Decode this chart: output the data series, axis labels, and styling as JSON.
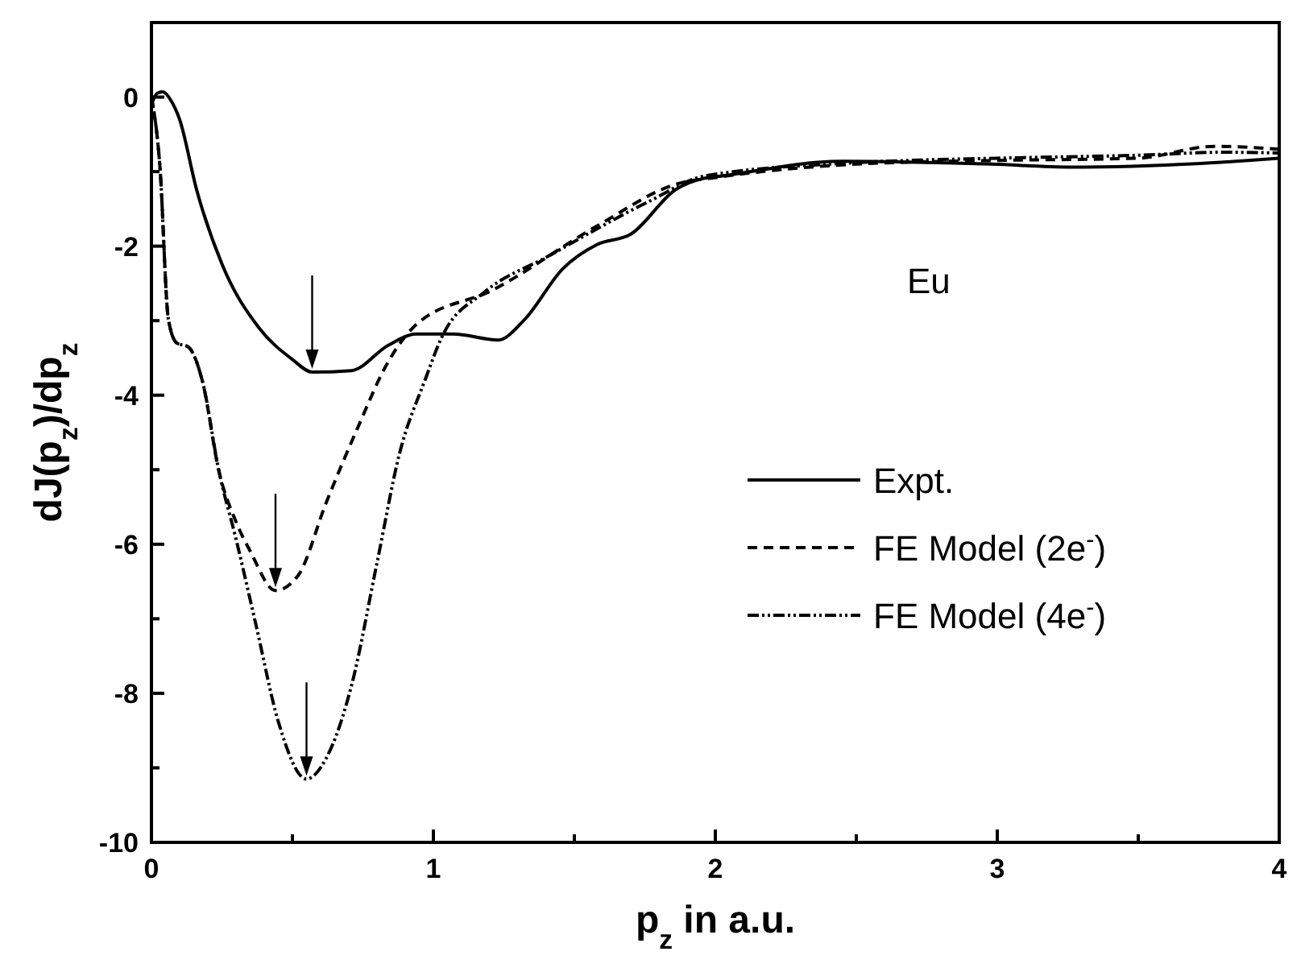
{
  "chart_data": {
    "type": "line",
    "xlabel": "p$_{z}$ in a.u.",
    "ylabel": "dJ(p$_{z}$)/dp$_{z}$",
    "xlim": [
      0,
      4
    ],
    "ylim": [
      -10,
      1
    ],
    "xticks": [
      0,
      {
        "value": 0.5,
        "label": null
      },
      1,
      {
        "value": 1.5,
        "label": null
      },
      2,
      {
        "value": 2.5,
        "label": null
      },
      3,
      {
        "value": 3.5,
        "label": null
      },
      4
    ],
    "yticks": [
      -10,
      {
        "value": -9,
        "label": null
      },
      -8,
      {
        "value": -7,
        "label": null
      },
      -6,
      {
        "value": -5,
        "label": null
      },
      -4,
      {
        "value": -3,
        "label": null
      },
      -2,
      {
        "value": -1,
        "label": null
      },
      0
    ],
    "grid": false,
    "legend": "right",
    "annotations": [
      "Eu"
    ],
    "series": [
      {
        "name": "Expt.",
        "color": "#000000",
        "line_style": "solid",
        "x": [
          0,
          0.02,
          0.04,
          0.07,
          0.1,
          0.16,
          0.25,
          0.38,
          0.5,
          0.57,
          0.71,
          0.84,
          0.94,
          1.07,
          1.23,
          1.32,
          1.46,
          1.58,
          1.7,
          1.86,
          1.96,
          2.02,
          2.45,
          2.98,
          3.26,
          3.72,
          4.0
        ],
        "values": [
          -0.1,
          0.05,
          0.07,
          -0.05,
          -0.3,
          -1.24,
          -2.24,
          -3.09,
          -3.52,
          -3.69,
          -3.67,
          -3.33,
          -3.18,
          -3.18,
          -3.26,
          -3.0,
          -2.3,
          -1.98,
          -1.84,
          -1.24,
          -1.09,
          -1.06,
          -0.86,
          -0.9,
          -0.94,
          -0.89,
          -0.82
        ]
      },
      {
        "name": "FE Model (2e$^{-}$)",
        "color": "#000000",
        "line_style": "dashed",
        "x": [
          0,
          0.03,
          0.06,
          0.09,
          0.13,
          0.18,
          0.24,
          0.3,
          0.35,
          0.44,
          0.52,
          0.62,
          0.73,
          0.84,
          0.94,
          1.21,
          1.58,
          1.86,
          2.02,
          2.5,
          3.0,
          3.5,
          3.77,
          4.0
        ],
        "values": [
          0,
          -0.93,
          -2.98,
          -3.3,
          -3.35,
          -3.8,
          -5.03,
          -5.7,
          -6.09,
          -6.62,
          -6.42,
          -5.44,
          -4.45,
          -3.55,
          -3.05,
          -2.59,
          -1.73,
          -1.17,
          -1.07,
          -0.9,
          -0.85,
          -0.82,
          -0.66,
          -0.7
        ]
      },
      {
        "name": "FE Model (4e$^{-}$)",
        "color": "#000000",
        "line_style": "dashdot",
        "x": [
          0,
          0.03,
          0.06,
          0.09,
          0.13,
          0.18,
          0.24,
          0.3,
          0.37,
          0.45,
          0.55,
          0.62,
          0.71,
          0.8,
          0.88,
          0.97,
          1.03,
          1.18,
          1.4,
          1.77,
          1.96,
          2.5,
          3.0,
          3.5,
          3.8,
          4.0
        ],
        "values": [
          0,
          -0.93,
          -2.98,
          -3.3,
          -3.35,
          -3.8,
          -5.03,
          -5.93,
          -7.07,
          -8.38,
          -9.15,
          -8.87,
          -7.89,
          -6.25,
          -4.78,
          -3.8,
          -3.22,
          -2.62,
          -2.15,
          -1.39,
          -1.06,
          -0.88,
          -0.82,
          -0.78,
          -0.74,
          -0.75
        ]
      }
    ]
  }
}
